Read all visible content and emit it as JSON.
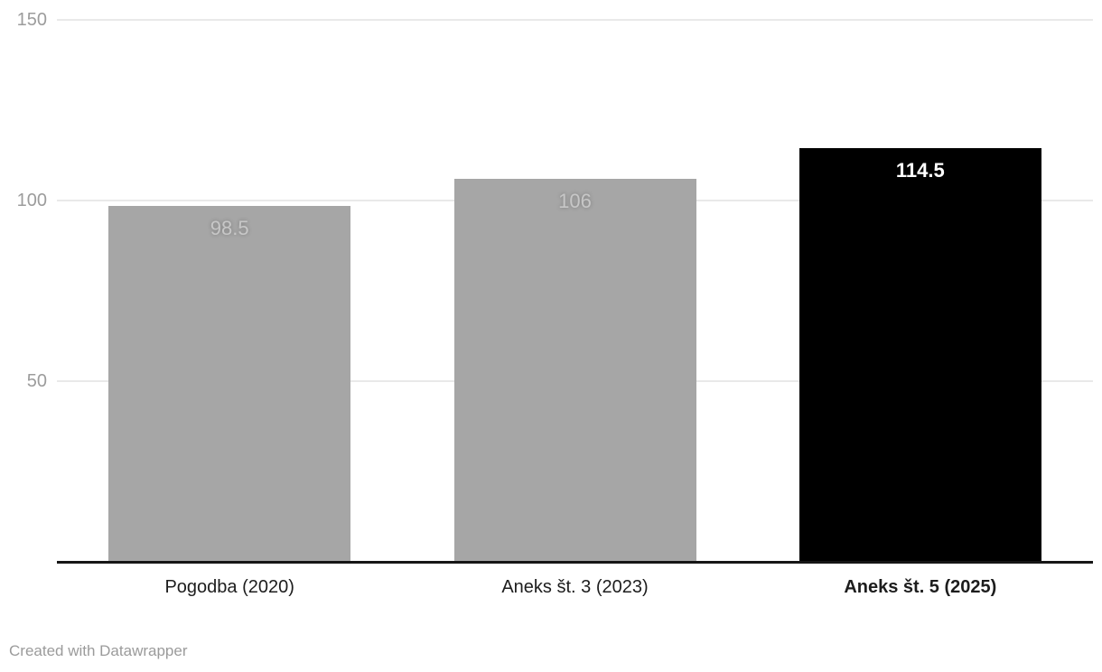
{
  "chart_data": {
    "type": "bar",
    "title": "",
    "xlabel": "",
    "ylabel": "",
    "categories": [
      "Pogodba (2020)",
      "Aneks št. 3 (2023)",
      "Aneks št. 5 (2025)"
    ],
    "values": [
      98.5,
      106,
      114.5
    ],
    "value_labels": [
      "98.5",
      "106",
      "114.5"
    ],
    "bar_colors": [
      "#a6a6a6",
      "#a6a6a6",
      "#000000"
    ],
    "value_label_colors": [
      "#c7c7c7",
      "#c7c7c7",
      "#ffffff"
    ],
    "emphasized": [
      false,
      false,
      true
    ],
    "ylim": [
      0,
      150
    ],
    "yticks": [
      50,
      100,
      150
    ],
    "grid": true,
    "legend": "none",
    "gridline_color": "#e9e9e9",
    "axis_line_color": "#161616",
    "tick_label_color": "#9c9c9c",
    "category_label_color": "#1d1d1d"
  },
  "footer": {
    "credit": "Created with Datawrapper"
  }
}
